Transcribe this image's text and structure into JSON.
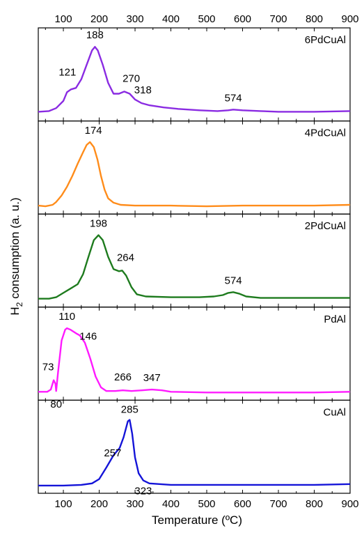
{
  "chart_data": {
    "type": "line",
    "xlabel": "Temperature (ºC)",
    "ylabel": "H",
    "ylabel_sub": "2",
    "ylabel_rest": " consumption (a. u.)",
    "xlim": [
      30,
      900
    ],
    "xticks": [
      100,
      200,
      300,
      400,
      500,
      600,
      700,
      800,
      900
    ],
    "xtick_labels": [
      "100",
      "200",
      "300",
      "400",
      "500",
      "600",
      "700",
      "800",
      "900"
    ],
    "grid": false,
    "panels": [
      {
        "name": "6PdCuAl",
        "color": "#8a2be2",
        "peaks": [
          {
            "label": "121",
            "x": 121
          },
          {
            "label": "188",
            "x": 188
          },
          {
            "label": "270",
            "x": 270
          },
          {
            "label": "318",
            "x": 318
          },
          {
            "label": "574",
            "x": 574
          }
        ],
        "points": [
          [
            30,
            0.05
          ],
          [
            60,
            0.06
          ],
          [
            80,
            0.1
          ],
          [
            100,
            0.2
          ],
          [
            110,
            0.32
          ],
          [
            121,
            0.36
          ],
          [
            135,
            0.38
          ],
          [
            150,
            0.5
          ],
          [
            165,
            0.7
          ],
          [
            180,
            0.9
          ],
          [
            188,
            0.95
          ],
          [
            196,
            0.9
          ],
          [
            210,
            0.7
          ],
          [
            225,
            0.45
          ],
          [
            240,
            0.3
          ],
          [
            255,
            0.3
          ],
          [
            270,
            0.33
          ],
          [
            285,
            0.3
          ],
          [
            300,
            0.22
          ],
          [
            318,
            0.17
          ],
          [
            340,
            0.14
          ],
          [
            380,
            0.11
          ],
          [
            420,
            0.09
          ],
          [
            480,
            0.07
          ],
          [
            530,
            0.06
          ],
          [
            560,
            0.07
          ],
          [
            574,
            0.08
          ],
          [
            600,
            0.07
          ],
          [
            650,
            0.06
          ],
          [
            700,
            0.05
          ],
          [
            800,
            0.05
          ],
          [
            900,
            0.06
          ]
        ]
      },
      {
        "name": "4PdCuAl",
        "color": "#ff8c1a",
        "peaks": [
          {
            "label": "174",
            "x": 174
          }
        ],
        "points": [
          [
            30,
            0.04
          ],
          [
            50,
            0.03
          ],
          [
            70,
            0.05
          ],
          [
            80,
            0.09
          ],
          [
            95,
            0.18
          ],
          [
            110,
            0.3
          ],
          [
            125,
            0.45
          ],
          [
            140,
            0.62
          ],
          [
            155,
            0.78
          ],
          [
            165,
            0.88
          ],
          [
            174,
            0.92
          ],
          [
            185,
            0.85
          ],
          [
            195,
            0.68
          ],
          [
            205,
            0.45
          ],
          [
            215,
            0.26
          ],
          [
            225,
            0.14
          ],
          [
            240,
            0.08
          ],
          [
            260,
            0.05
          ],
          [
            300,
            0.04
          ],
          [
            400,
            0.04
          ],
          [
            500,
            0.03
          ],
          [
            600,
            0.04
          ],
          [
            700,
            0.04
          ],
          [
            800,
            0.04
          ],
          [
            900,
            0.05
          ]
        ]
      },
      {
        "name": "2PdCuAl",
        "color": "#1e7b1e",
        "peaks": [
          {
            "label": "198",
            "x": 198
          },
          {
            "label": "264",
            "x": 264
          },
          {
            "label": "574",
            "x": 574
          }
        ],
        "points": [
          [
            30,
            0.04
          ],
          [
            60,
            0.04
          ],
          [
            80,
            0.06
          ],
          [
            100,
            0.12
          ],
          [
            120,
            0.18
          ],
          [
            140,
            0.24
          ],
          [
            155,
            0.38
          ],
          [
            170,
            0.62
          ],
          [
            185,
            0.85
          ],
          [
            198,
            0.92
          ],
          [
            210,
            0.85
          ],
          [
            225,
            0.62
          ],
          [
            240,
            0.45
          ],
          [
            255,
            0.42
          ],
          [
            264,
            0.43
          ],
          [
            275,
            0.36
          ],
          [
            290,
            0.2
          ],
          [
            305,
            0.1
          ],
          [
            330,
            0.07
          ],
          [
            400,
            0.06
          ],
          [
            480,
            0.06
          ],
          [
            520,
            0.07
          ],
          [
            545,
            0.09
          ],
          [
            560,
            0.12
          ],
          [
            574,
            0.13
          ],
          [
            590,
            0.11
          ],
          [
            610,
            0.07
          ],
          [
            650,
            0.05
          ],
          [
            700,
            0.05
          ],
          [
            800,
            0.05
          ],
          [
            900,
            0.05
          ]
        ]
      },
      {
        "name": "PdAl",
        "color": "#ff1aff",
        "peaks": [
          {
            "label": "73",
            "x": 73
          },
          {
            "label": "80",
            "x": 80
          },
          {
            "label": "110",
            "x": 110
          },
          {
            "label": "146",
            "x": 146
          },
          {
            "label": "266",
            "x": 266
          },
          {
            "label": "347",
            "x": 347
          }
        ],
        "points": [
          [
            30,
            0.04
          ],
          [
            55,
            0.04
          ],
          [
            65,
            0.07
          ],
          [
            73,
            0.2
          ],
          [
            78,
            0.15
          ],
          [
            80,
            0.05
          ],
          [
            85,
            0.3
          ],
          [
            95,
            0.75
          ],
          [
            105,
            0.9
          ],
          [
            110,
            0.92
          ],
          [
            120,
            0.9
          ],
          [
            135,
            0.85
          ],
          [
            146,
            0.82
          ],
          [
            160,
            0.72
          ],
          [
            175,
            0.5
          ],
          [
            190,
            0.25
          ],
          [
            205,
            0.1
          ],
          [
            220,
            0.05
          ],
          [
            245,
            0.05
          ],
          [
            266,
            0.06
          ],
          [
            290,
            0.05
          ],
          [
            320,
            0.06
          ],
          [
            347,
            0.07
          ],
          [
            375,
            0.06
          ],
          [
            400,
            0.04
          ],
          [
            500,
            0.03
          ],
          [
            600,
            0.03
          ],
          [
            700,
            0.03
          ],
          [
            800,
            0.03
          ],
          [
            900,
            0.04
          ]
        ]
      },
      {
        "name": "CuAl",
        "color": "#1414d8",
        "peaks": [
          {
            "label": "257",
            "x": 257
          },
          {
            "label": "285",
            "x": 285
          },
          {
            "label": "323",
            "x": 323
          }
        ],
        "points": [
          [
            30,
            0.03
          ],
          [
            100,
            0.03
          ],
          [
            150,
            0.04
          ],
          [
            180,
            0.06
          ],
          [
            200,
            0.12
          ],
          [
            220,
            0.28
          ],
          [
            240,
            0.45
          ],
          [
            257,
            0.55
          ],
          [
            268,
            0.7
          ],
          [
            280,
            0.92
          ],
          [
            285,
            0.94
          ],
          [
            292,
            0.75
          ],
          [
            300,
            0.42
          ],
          [
            310,
            0.2
          ],
          [
            323,
            0.1
          ],
          [
            340,
            0.06
          ],
          [
            400,
            0.04
          ],
          [
            500,
            0.04
          ],
          [
            600,
            0.04
          ],
          [
            700,
            0.04
          ],
          [
            800,
            0.04
          ],
          [
            900,
            0.05
          ]
        ]
      }
    ]
  }
}
